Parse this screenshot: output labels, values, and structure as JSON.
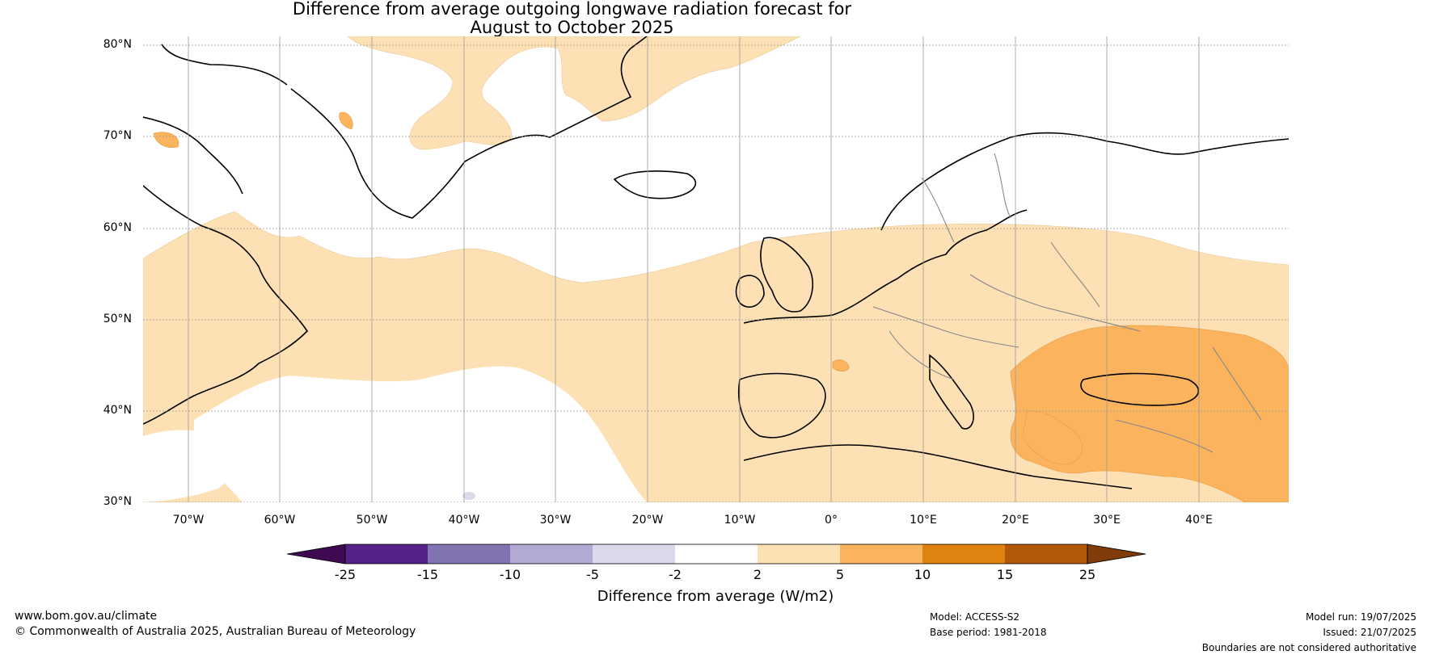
{
  "title": {
    "line1": "Difference from average outgoing longwave radiation forecast for",
    "line2": "August to October 2025"
  },
  "axes": {
    "lat_labels": [
      "80°N",
      "70°N",
      "60°N",
      "50°N",
      "40°N",
      "30°N"
    ],
    "lon_labels": [
      "70°W",
      "60°W",
      "50°W",
      "40°W",
      "30°W",
      "20°W",
      "10°W",
      "0°",
      "10°E",
      "20°E",
      "30°E",
      "40°E"
    ]
  },
  "colorbar": {
    "label": "Difference from average (W/m2)",
    "ticks": [
      "-25",
      "-15",
      "-10",
      "-5",
      "-2",
      "2",
      "5",
      "10",
      "15",
      "25"
    ],
    "colors": [
      "#3f0a52",
      "#55228a",
      "#8073b0",
      "#b3aad3",
      "#dadaec",
      "#ffffff",
      "#fde0b3",
      "#fbb45d",
      "#e0820f",
      "#b35807",
      "#7f3b08"
    ]
  },
  "footer": {
    "website": "www.bom.gov.au/climate",
    "copyright": "© Commonwealth of Australia 2025, Australian Bureau of Meteorology",
    "model": "Model: ACCESS-S2",
    "base_period": "Base period: 1981-2018",
    "model_run": "Model run: 19/07/2025",
    "issued": "Issued: 21/07/2025",
    "disclaimer": "Boundaries are not considered authoritative"
  }
}
